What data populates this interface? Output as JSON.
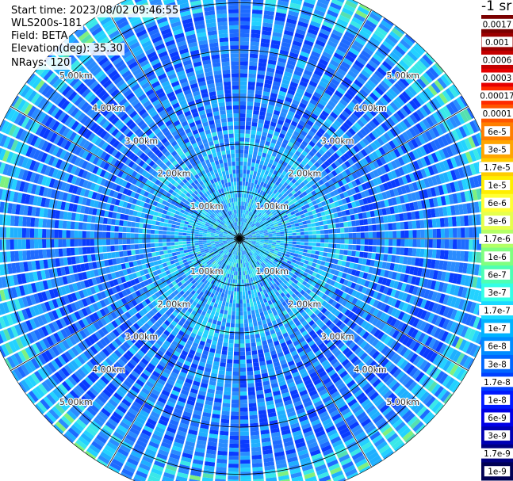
{
  "header": {
    "start_time": "Start time: 2023/08/02 09:46:55",
    "device": "WLS200s-181",
    "field": "Field: BETA",
    "elevation": "Elevation(deg): 35.30",
    "nrays": "NRays: 120"
  },
  "colorbar": {
    "unit_label": "-1 sr",
    "ticks": [
      "0.0017",
      "0.001",
      "0.0006",
      "0.0003",
      "0.00017",
      "0.0001",
      "6e-5",
      "3e-5",
      "1.7e-5",
      "1e-5",
      "6e-6",
      "3e-6",
      "1.7e-6",
      "1e-6",
      "6e-7",
      "3e-7",
      "1.7e-7",
      "1e-7",
      "6e-8",
      "3e-8",
      "1.7e-8",
      "1e-8",
      "6e-9",
      "3e-9",
      "1.7e-9",
      "1e-9"
    ],
    "colors": [
      "#7a0000",
      "#9c0000",
      "#c40000",
      "#e60000",
      "#ff2a00",
      "#ff5500",
      "#ff7f00",
      "#ffa500",
      "#ffcc00",
      "#ffee00",
      "#ffff33",
      "#e6ff4d",
      "#b3ff66",
      "#80ff80",
      "#4dffb3",
      "#33ffe6",
      "#1ad9ff",
      "#00b3ff",
      "#008cff",
      "#0066ff",
      "#0040ff",
      "#0019ff",
      "#0000e6",
      "#0000b3",
      "#000080",
      "#000055"
    ]
  },
  "chart_data": {
    "type": "heatmap",
    "projection": "polar (PPI scan)",
    "field": "BETA",
    "elevation_deg": 35.3,
    "n_rays": 120,
    "range_rings_km": [
      1,
      2,
      3,
      4,
      5
    ],
    "range_ring_labels": [
      "1.00km",
      "2.00km",
      "3.00km",
      "4.00km",
      "5.00km"
    ],
    "spoke_angles_deg": [
      0,
      30,
      60,
      90,
      120,
      150,
      180,
      210,
      240,
      270,
      300,
      330
    ],
    "max_range_km": 5.6,
    "dominant_value_range": [
      "1e-8",
      "3e-7"
    ],
    "colorbar_scale": "log",
    "colorbar_range": [
      "1e-9",
      "0.0017"
    ]
  }
}
